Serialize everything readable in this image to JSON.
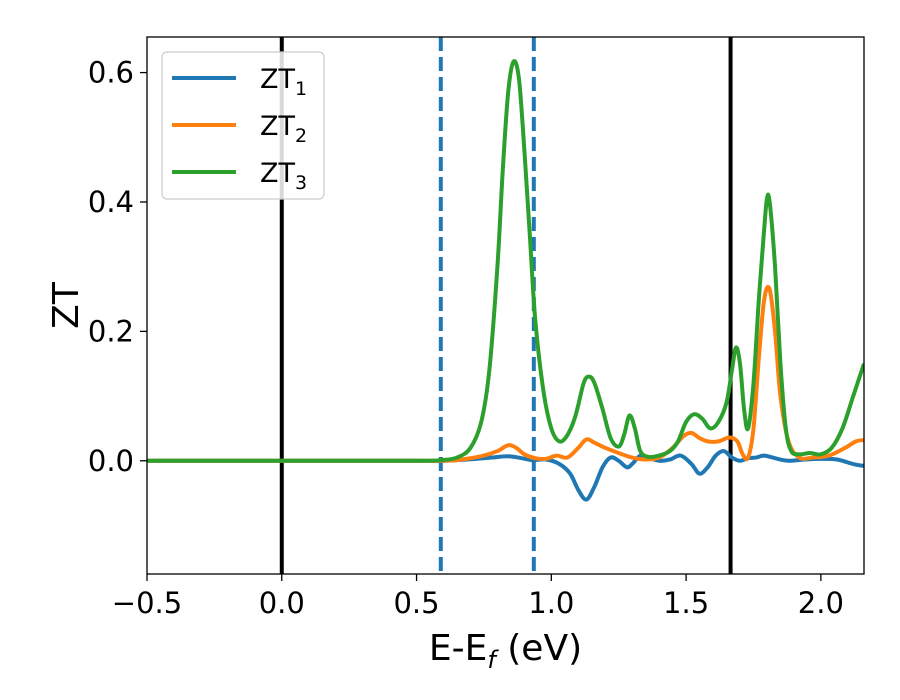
{
  "chart_data": {
    "type": "line",
    "xlabel": "E-E",
    "xlabel_sub": "f",
    "xlabel_unit": " (eV)",
    "ylabel": "ZT",
    "xlim": [
      -0.5,
      2.16
    ],
    "ylim": [
      -0.175,
      0.655
    ],
    "xticks": [
      -0.5,
      0.0,
      0.5,
      1.0,
      1.5,
      2.0
    ],
    "xtick_labels": [
      "−0.5",
      "0.0",
      "0.5",
      "1.0",
      "1.5",
      "2.0"
    ],
    "yticks": [
      0.0,
      0.2,
      0.4,
      0.6
    ],
    "ytick_labels": [
      "0.0",
      "0.2",
      "0.4",
      "0.6"
    ],
    "grid": false,
    "legend_position": "top-left",
    "vlines": [
      {
        "x": 0.0,
        "style": "solid",
        "color": "#000000"
      },
      {
        "x": 0.59,
        "style": "dashed",
        "color": "#1f77b4"
      },
      {
        "x": 0.935,
        "style": "dashed",
        "color": "#1f77b4"
      },
      {
        "x": 1.665,
        "style": "solid",
        "color": "#000000"
      }
    ],
    "series": [
      {
        "name": "ZT",
        "name_sub": "1",
        "color": "#1f77b4",
        "x": [
          -0.5,
          0.0,
          0.5,
          0.59,
          0.65,
          0.72,
          0.78,
          0.84,
          0.89,
          0.93,
          0.98,
          1.03,
          1.07,
          1.1,
          1.13,
          1.16,
          1.19,
          1.22,
          1.25,
          1.28,
          1.3,
          1.33,
          1.36,
          1.4,
          1.44,
          1.48,
          1.52,
          1.55,
          1.58,
          1.61,
          1.64,
          1.67,
          1.7,
          1.73,
          1.76,
          1.79,
          1.83,
          1.88,
          1.94,
          2.0,
          2.06,
          2.12,
          2.16
        ],
        "y": [
          0.0,
          0.0,
          0.0,
          0.0,
          0.001,
          0.003,
          0.005,
          0.007,
          0.004,
          0.001,
          0.002,
          -0.005,
          -0.02,
          -0.045,
          -0.06,
          -0.04,
          -0.01,
          0.005,
          0.0,
          -0.01,
          -0.005,
          0.008,
          0.005,
          0.0,
          0.002,
          0.008,
          -0.005,
          -0.02,
          -0.01,
          0.008,
          0.015,
          0.005,
          0.0,
          0.004,
          0.005,
          0.008,
          0.004,
          0.0,
          0.002,
          0.003,
          0.002,
          -0.005,
          -0.008
        ]
      },
      {
        "name": "ZT",
        "name_sub": "2",
        "color": "#ff7f0e",
        "x": [
          -0.5,
          0.0,
          0.5,
          0.59,
          0.65,
          0.7,
          0.75,
          0.8,
          0.84,
          0.87,
          0.9,
          0.94,
          0.98,
          1.02,
          1.06,
          1.1,
          1.13,
          1.16,
          1.2,
          1.25,
          1.3,
          1.35,
          1.4,
          1.45,
          1.49,
          1.52,
          1.55,
          1.58,
          1.62,
          1.66,
          1.69,
          1.71,
          1.73,
          1.75,
          1.77,
          1.79,
          1.81,
          1.83,
          1.85,
          1.88,
          1.92,
          1.97,
          2.03,
          2.09,
          2.13,
          2.16
        ],
        "y": [
          0.0,
          0.0,
          0.0,
          0.0,
          0.001,
          0.004,
          0.008,
          0.015,
          0.024,
          0.02,
          0.01,
          0.004,
          0.003,
          0.008,
          0.005,
          0.02,
          0.033,
          0.028,
          0.02,
          0.012,
          0.005,
          0.002,
          0.005,
          0.02,
          0.038,
          0.043,
          0.035,
          0.03,
          0.03,
          0.036,
          0.03,
          0.01,
          0.005,
          0.05,
          0.16,
          0.25,
          0.265,
          0.2,
          0.1,
          0.03,
          0.005,
          0.005,
          0.008,
          0.02,
          0.03,
          0.032
        ]
      },
      {
        "name": "ZT",
        "name_sub": "3",
        "color": "#2ca02c",
        "x": [
          -0.5,
          0.0,
          0.5,
          0.59,
          0.65,
          0.7,
          0.74,
          0.77,
          0.8,
          0.82,
          0.84,
          0.86,
          0.88,
          0.9,
          0.92,
          0.94,
          0.97,
          1.0,
          1.03,
          1.06,
          1.09,
          1.12,
          1.14,
          1.16,
          1.19,
          1.22,
          1.25,
          1.27,
          1.29,
          1.31,
          1.33,
          1.36,
          1.4,
          1.44,
          1.47,
          1.5,
          1.53,
          1.56,
          1.59,
          1.62,
          1.65,
          1.67,
          1.685,
          1.7,
          1.715,
          1.73,
          1.75,
          1.77,
          1.79,
          1.8,
          1.81,
          1.83,
          1.85,
          1.87,
          1.89,
          1.92,
          1.96,
          2.0,
          2.04,
          2.08,
          2.12,
          2.16
        ],
        "y": [
          0.0,
          0.0,
          0.0,
          0.001,
          0.005,
          0.02,
          0.06,
          0.14,
          0.3,
          0.45,
          0.57,
          0.617,
          0.59,
          0.48,
          0.35,
          0.22,
          0.11,
          0.05,
          0.03,
          0.04,
          0.07,
          0.12,
          0.13,
          0.12,
          0.08,
          0.035,
          0.022,
          0.04,
          0.07,
          0.05,
          0.015,
          0.006,
          0.008,
          0.015,
          0.03,
          0.06,
          0.072,
          0.065,
          0.05,
          0.06,
          0.09,
          0.14,
          0.175,
          0.15,
          0.08,
          0.05,
          0.12,
          0.25,
          0.36,
          0.405,
          0.4,
          0.3,
          0.15,
          0.05,
          0.015,
          0.01,
          0.012,
          0.01,
          0.02,
          0.05,
          0.1,
          0.15
        ]
      }
    ]
  }
}
